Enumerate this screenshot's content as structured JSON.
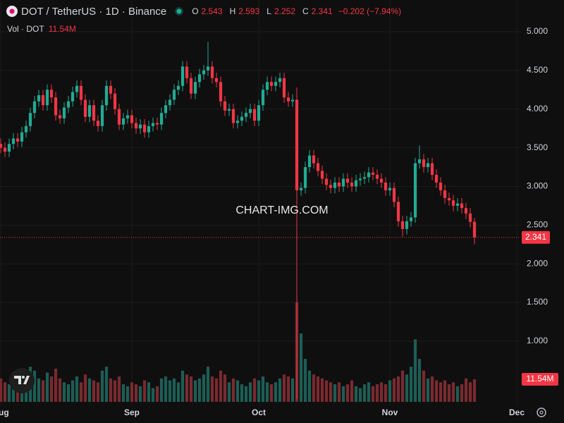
{
  "chart_data": {
    "type": "candlestick",
    "title": "DOT / TetherUS · 1D · Binance",
    "ohlc_letters": [
      "O",
      "H",
      "L",
      "C"
    ],
    "change": "−0.202 (−7.94%)",
    "volume_title": "Vol · DOT",
    "volume_label": "11.54M",
    "watermark": "CHART-IMG.COM",
    "colors": {
      "up": "#22ab94",
      "down": "#f23645",
      "volume_up": "#1c5e55",
      "volume_down": "#7a2a30"
    },
    "grid": true,
    "xlim": [
      -0.17,
      122.83
    ],
    "xticks": [
      {
        "value": 0,
        "label": "Aug"
      },
      {
        "value": 31,
        "label": "Sep"
      },
      {
        "value": 61,
        "label": "Oct"
      },
      {
        "value": 92,
        "label": "Nov"
      },
      {
        "value": 122,
        "label": "Dec"
      }
    ],
    "ylim": [
      0.17,
      5.41
    ],
    "yticks": [
      {
        "value": 1,
        "label": "1.000"
      },
      {
        "value": 1.5,
        "label": "1.500"
      },
      {
        "value": 2,
        "label": "2.000"
      },
      {
        "value": 2.5,
        "label": "2.500"
      },
      {
        "value": 3,
        "label": "3.000"
      },
      {
        "value": 3.5,
        "label": "3.500"
      },
      {
        "value": 4,
        "label": "4.000"
      },
      {
        "value": 4.5,
        "label": "4.500"
      },
      {
        "value": 5,
        "label": "5.000"
      }
    ],
    "x": [
      0,
      1,
      2,
      3,
      4,
      5,
      6,
      7,
      8,
      9,
      10,
      11,
      12,
      13,
      14,
      15,
      16,
      17,
      18,
      19,
      20,
      21,
      22,
      23,
      24,
      25,
      26,
      27,
      28,
      29,
      30,
      31,
      32,
      33,
      34,
      35,
      36,
      37,
      38,
      39,
      40,
      41,
      42,
      43,
      44,
      45,
      46,
      47,
      48,
      49,
      50,
      51,
      52,
      53,
      54,
      55,
      56,
      57,
      58,
      59,
      60,
      61,
      62,
      63,
      64,
      65,
      66,
      67,
      68,
      69,
      70,
      71,
      72,
      73,
      74,
      75,
      76,
      77,
      78,
      79,
      80,
      81,
      82,
      83,
      84,
      85,
      86,
      87,
      88,
      89,
      90,
      91,
      92,
      93,
      94,
      95,
      96,
      97,
      98,
      99,
      100,
      101,
      102,
      103,
      104,
      105,
      106,
      107,
      108,
      109,
      110,
      111,
      112
    ],
    "open": [
      3.55,
      3.5,
      3.45,
      3.55,
      3.62,
      3.58,
      3.7,
      3.78,
      3.95,
      4.1,
      4.18,
      4.05,
      4.25,
      4.15,
      3.92,
      3.88,
      4.02,
      4.1,
      4.22,
      4.3,
      4.12,
      3.9,
      4.05,
      3.85,
      3.78,
      4.05,
      4.3,
      4.2,
      4.0,
      3.8,
      3.88,
      3.92,
      3.82,
      3.75,
      3.8,
      3.7,
      3.78,
      3.82,
      3.8,
      3.95,
      4.05,
      4.12,
      4.25,
      4.3,
      4.55,
      4.4,
      4.2,
      4.35,
      4.45,
      4.5,
      4.55,
      4.4,
      4.35,
      4.1,
      3.98,
      4.0,
      3.82,
      3.85,
      3.9,
      3.95,
      4.0,
      3.85,
      4.05,
      4.25,
      4.35,
      4.3,
      4.35,
      4.4,
      4.15,
      4.1,
      4.12,
      2.95,
      2.98,
      3.25,
      3.4,
      3.3,
      3.2,
      3.1,
      3.02,
      2.98,
      3.05,
      3.0,
      3.1,
      3.05,
      3.0,
      3.08,
      3.1,
      3.12,
      3.18,
      3.15,
      3.1,
      3.05,
      2.95,
      2.98,
      2.8,
      2.55,
      2.45,
      2.55,
      2.6,
      3.3,
      3.35,
      3.25,
      3.3,
      3.15,
      3.05,
      2.95,
      2.85,
      2.82,
      2.75,
      2.78,
      2.72,
      2.65,
      2.543
    ],
    "high": [
      3.62,
      3.57,
      3.62,
      3.69,
      3.69,
      3.77,
      3.85,
      4.02,
      4.17,
      4.25,
      4.25,
      4.32,
      4.32,
      4.22,
      3.99,
      4.09,
      4.17,
      4.29,
      4.37,
      4.37,
      4.19,
      4.12,
      4.12,
      3.92,
      4.12,
      4.37,
      4.37,
      4.27,
      4.07,
      3.95,
      3.99,
      3.99,
      3.89,
      3.87,
      3.87,
      3.85,
      3.89,
      3.89,
      4.02,
      4.12,
      4.19,
      4.32,
      4.37,
      4.62,
      4.62,
      4.47,
      4.42,
      4.52,
      4.57,
      4.87,
      4.62,
      4.47,
      4.42,
      4.17,
      4.07,
      4.07,
      3.92,
      3.97,
      4.02,
      4.07,
      4.07,
      4.12,
      4.32,
      4.42,
      4.42,
      4.42,
      4.47,
      4.47,
      4.22,
      4.19,
      4.28,
      3.05,
      3.32,
      3.47,
      3.47,
      3.37,
      3.27,
      3.17,
      3.09,
      3.12,
      3.12,
      3.17,
      3.17,
      3.12,
      3.15,
      3.17,
      3.19,
      3.25,
      3.25,
      3.22,
      3.17,
      3.12,
      3.05,
      3.05,
      2.87,
      2.62,
      2.62,
      2.67,
      3.37,
      3.53,
      3.42,
      3.37,
      3.37,
      3.22,
      3.12,
      3.02,
      2.92,
      2.89,
      2.85,
      2.85,
      2.79,
      2.72,
      2.593
    ],
    "low": [
      3.43,
      3.38,
      3.38,
      3.48,
      3.51,
      3.51,
      3.63,
      3.71,
      3.88,
      4.03,
      3.98,
      3.98,
      4.08,
      3.85,
      3.81,
      3.81,
      3.95,
      4.03,
      4.15,
      4.05,
      3.83,
      3.83,
      3.78,
      3.71,
      3.71,
      3.98,
      4.13,
      3.93,
      3.73,
      3.73,
      3.81,
      3.75,
      3.68,
      3.68,
      3.63,
      3.63,
      3.71,
      3.73,
      3.73,
      3.88,
      3.98,
      4.05,
      4.18,
      4.23,
      4.33,
      4.13,
      4.13,
      4.28,
      4.38,
      4.43,
      4.33,
      4.28,
      4.03,
      3.91,
      3.91,
      3.75,
      3.75,
      3.78,
      3.83,
      3.88,
      3.78,
      3.78,
      3.98,
      4.18,
      4.23,
      4.23,
      4.28,
      4.08,
      4.03,
      4.03,
      0.25,
      2.88,
      2.91,
      3.18,
      3.23,
      3.13,
      3.03,
      2.95,
      2.91,
      2.91,
      2.93,
      2.93,
      2.98,
      2.93,
      2.93,
      3.01,
      3.03,
      3.05,
      3.08,
      3.03,
      2.98,
      2.88,
      2.88,
      2.73,
      2.48,
      2.35,
      2.38,
      2.48,
      2.53,
      3.23,
      3.18,
      3.18,
      3.08,
      2.98,
      2.88,
      2.78,
      2.75,
      2.68,
      2.68,
      2.65,
      2.58,
      2.47,
      2.252
    ],
    "close": [
      3.5,
      3.45,
      3.55,
      3.62,
      3.58,
      3.7,
      3.78,
      3.95,
      4.1,
      4.18,
      4.05,
      4.25,
      4.15,
      3.92,
      3.88,
      4.02,
      4.1,
      4.22,
      4.3,
      4.12,
      3.9,
      4.05,
      3.85,
      3.78,
      4.05,
      4.3,
      4.2,
      4.0,
      3.8,
      3.88,
      3.92,
      3.82,
      3.75,
      3.8,
      3.7,
      3.78,
      3.82,
      3.8,
      3.95,
      4.05,
      4.12,
      4.25,
      4.3,
      4.55,
      4.4,
      4.2,
      4.35,
      4.45,
      4.5,
      4.55,
      4.4,
      4.35,
      4.1,
      3.98,
      4.0,
      3.82,
      3.85,
      3.9,
      3.95,
      4.0,
      3.85,
      4.05,
      4.25,
      4.35,
      4.3,
      4.35,
      4.4,
      4.15,
      4.1,
      4.12,
      2.95,
      2.98,
      3.25,
      3.4,
      3.3,
      3.2,
      3.1,
      3.02,
      2.98,
      3.05,
      3.0,
      3.1,
      3.05,
      3.0,
      3.08,
      3.1,
      3.12,
      3.18,
      3.15,
      3.1,
      3.05,
      2.95,
      2.98,
      2.8,
      2.55,
      2.45,
      2.55,
      2.6,
      3.3,
      3.35,
      3.25,
      3.3,
      3.15,
      3.05,
      2.95,
      2.85,
      2.82,
      2.75,
      2.78,
      2.72,
      2.65,
      2.543,
      2.341
    ],
    "volume": [
      12,
      10,
      9,
      11,
      10,
      13,
      14,
      18,
      16,
      12,
      11,
      15,
      13,
      17,
      12,
      10,
      9,
      11,
      13,
      10,
      14,
      12,
      11,
      10,
      16,
      18,
      12,
      11,
      13,
      9,
      8,
      10,
      9,
      8,
      11,
      10,
      7,
      8,
      12,
      13,
      11,
      12,
      10,
      16,
      14,
      13,
      11,
      12,
      14,
      18,
      13,
      12,
      16,
      14,
      10,
      12,
      11,
      9,
      8,
      10,
      12,
      11,
      13,
      10,
      9,
      10,
      12,
      14,
      13,
      12,
      51,
      35,
      22,
      16,
      14,
      13,
      12,
      11,
      10,
      9,
      10,
      8,
      9,
      11,
      8,
      7,
      9,
      10,
      8,
      9,
      10,
      9,
      11,
      12,
      13,
      16,
      14,
      18,
      32,
      22,
      16,
      12,
      13,
      11,
      10,
      11,
      9,
      10,
      8,
      9,
      12,
      10,
      11.54
    ]
  }
}
